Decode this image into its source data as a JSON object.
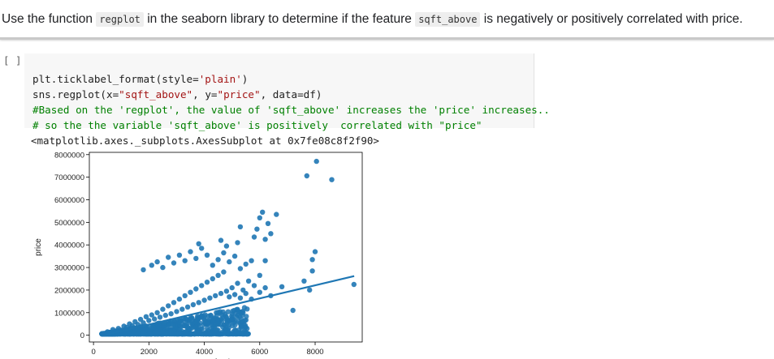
{
  "markdown": {
    "prefix": "Use the function ",
    "code1": "regplot",
    "middle1": " in the seaborn library to determine if the feature ",
    "code2": "sqft_above",
    "suffix": " is negatively or positively correlated with price."
  },
  "cell": {
    "run_label": "[ ]",
    "lines": [
      [
        "plt.ticklabel_format(style=",
        "'plain'",
        ")"
      ],
      [
        "sns.regplot(x=",
        "\"sqft_above\"",
        ", y=",
        "\"price\"",
        ", data=df)"
      ]
    ],
    "comment1": "#Based on the 'regplot', the value of 'sqft_above' increases the 'price' increases..",
    "comment2": "# so the the variable 'sqft_above' is positively  correlated with \"price\""
  },
  "output": {
    "repr": "<matplotlib.axes._subplots.AxesSubplot at 0x7fe08c8f2f90>"
  },
  "chart_data": {
    "type": "scatter",
    "title": "",
    "xlabel": "sqft_above",
    "ylabel": "price",
    "xlim": [
      -150,
      9700
    ],
    "ylim": [
      -300000,
      8100000
    ],
    "xticks": [
      0,
      2000,
      4000,
      6000,
      8000
    ],
    "yticks": [
      0,
      1000000,
      2000000,
      3000000,
      4000000,
      5000000,
      6000000,
      7000000,
      8000000
    ],
    "point_color": "#1f77b4",
    "regression_line": {
      "x": [
        290,
        9410
      ],
      "y": [
        -25000,
        2620000
      ]
    },
    "points": [
      [
        400,
        80000
      ],
      [
        500,
        150000
      ],
      [
        600,
        120000
      ],
      [
        700,
        250000
      ],
      [
        800,
        180000
      ],
      [
        900,
        300000
      ],
      [
        1000,
        220000
      ],
      [
        1100,
        400000
      ],
      [
        1200,
        350000
      ],
      [
        1300,
        500000
      ],
      [
        1400,
        420000
      ],
      [
        1500,
        600000
      ],
      [
        1600,
        480000
      ],
      [
        1700,
        700000
      ],
      [
        1800,
        550000
      ],
      [
        1900,
        820000
      ],
      [
        2000,
        650000
      ],
      [
        2100,
        900000
      ],
      [
        2200,
        720000
      ],
      [
        2300,
        1000000
      ],
      [
        2400,
        800000
      ],
      [
        2500,
        1150000
      ],
      [
        2600,
        880000
      ],
      [
        2700,
        1300000
      ],
      [
        2800,
        950000
      ],
      [
        2900,
        1450000
      ],
      [
        3000,
        1050000
      ],
      [
        3100,
        1600000
      ],
      [
        3200,
        1150000
      ],
      [
        3300,
        1750000
      ],
      [
        3400,
        1250000
      ],
      [
        3500,
        1900000
      ],
      [
        3600,
        1350000
      ],
      [
        3700,
        2050000
      ],
      [
        3800,
        1450000
      ],
      [
        3900,
        2200000
      ],
      [
        4000,
        1550000
      ],
      [
        4100,
        2350000
      ],
      [
        4200,
        1650000
      ],
      [
        4300,
        2500000
      ],
      [
        4400,
        1750000
      ],
      [
        4500,
        2650000
      ],
      [
        4600,
        1850000
      ],
      [
        4700,
        2800000
      ],
      [
        4800,
        1950000
      ],
      [
        4900,
        1700000
      ],
      [
        5000,
        2100000
      ],
      [
        5100,
        1800000
      ],
      [
        5200,
        2300000
      ],
      [
        5300,
        1650000
      ],
      [
        5400,
        2000000
      ],
      [
        5500,
        1850000
      ],
      [
        5600,
        2400000
      ],
      [
        5700,
        1600000
      ],
      [
        5800,
        2200000
      ],
      [
        6000,
        1900000
      ],
      [
        6200,
        2100000
      ],
      [
        6400,
        1750000
      ],
      [
        6800,
        2150000
      ],
      [
        7200,
        1100000
      ],
      [
        7600,
        2400000
      ],
      [
        7800,
        2000000
      ],
      [
        7900,
        3350000
      ],
      [
        9400,
        2250000
      ],
      [
        1800,
        2900000
      ],
      [
        2100,
        3100000
      ],
      [
        2300,
        3250000
      ],
      [
        2500,
        3000000
      ],
      [
        2700,
        3450000
      ],
      [
        2900,
        3200000
      ],
      [
        3100,
        3550000
      ],
      [
        3300,
        3300000
      ],
      [
        3500,
        3700000
      ],
      [
        3700,
        3400000
      ],
      [
        3900,
        3850000
      ],
      [
        4100,
        3550000
      ],
      [
        4300,
        3100000
      ],
      [
        4500,
        3350000
      ],
      [
        4700,
        3650000
      ],
      [
        4900,
        3250000
      ],
      [
        5100,
        3500000
      ],
      [
        5300,
        2950000
      ],
      [
        5500,
        3150000
      ],
      [
        5700,
        3300000
      ],
      [
        6000,
        2650000
      ],
      [
        6200,
        3300000
      ],
      [
        7900,
        2850000
      ],
      [
        8000,
        3700000
      ],
      [
        3800,
        4050000
      ],
      [
        4600,
        4200000
      ],
      [
        4800,
        3950000
      ],
      [
        5200,
        4100000
      ],
      [
        5800,
        4350000
      ],
      [
        5900,
        4700000
      ],
      [
        5300,
        4800000
      ],
      [
        6200,
        4250000
      ],
      [
        6300,
        4950000
      ],
      [
        6400,
        4500000
      ],
      [
        6000,
        5200000
      ],
      [
        6100,
        5450000
      ],
      [
        6600,
        5350000
      ],
      [
        7700,
        7060000
      ],
      [
        8050,
        7700000
      ],
      [
        8600,
        6890000
      ]
    ]
  }
}
